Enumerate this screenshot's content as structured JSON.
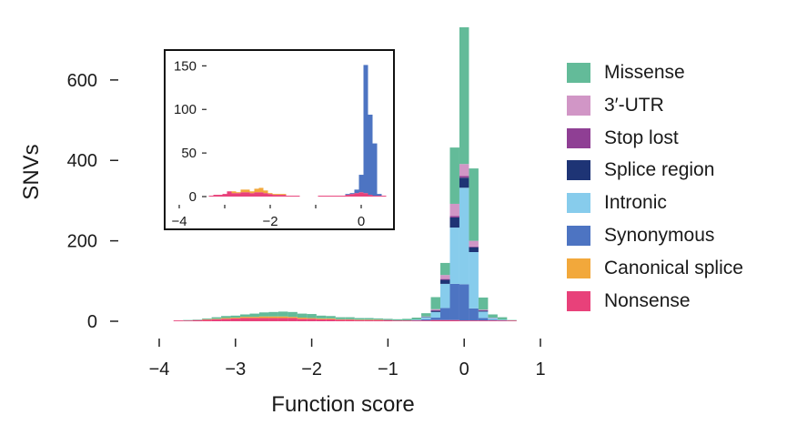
{
  "chart_data": {
    "type": "bar",
    "stacked": true,
    "xlabel": "Function score",
    "ylabel": "SNVs",
    "xlim": [
      -4,
      1
    ],
    "ylim": [
      0,
      740
    ],
    "xticks": [
      "-4",
      "-3",
      "-2",
      "-1",
      "0",
      "1"
    ],
    "yticks": [
      "0",
      "200",
      "400",
      "600"
    ],
    "bin_width": 0.125,
    "legend_position": "right",
    "categories": [
      -3.75,
      -3.625,
      -3.5,
      -3.375,
      -3.25,
      -3.125,
      -3.0,
      -2.875,
      -2.75,
      -2.625,
      -2.5,
      -2.375,
      -2.25,
      -2.125,
      -2.0,
      -1.875,
      -1.75,
      -1.625,
      -1.5,
      -1.375,
      -1.25,
      -1.125,
      -1.0,
      -0.875,
      -0.75,
      -0.625,
      -0.5,
      -0.375,
      -0.25,
      -0.125,
      0.0,
      0.125,
      0.25,
      0.375,
      0.5,
      0.625
    ],
    "series": [
      {
        "name": "Nonsense",
        "color": "#e8417a",
        "values": [
          2,
          2,
          3,
          4,
          5,
          6,
          7,
          8,
          8,
          8,
          8,
          8,
          8,
          6,
          6,
          5,
          5,
          4,
          4,
          3,
          3,
          3,
          3,
          2,
          2,
          2,
          2,
          3,
          3,
          3,
          2,
          2,
          2,
          2,
          2,
          2
        ]
      },
      {
        "name": "Canonical splice",
        "color": "#f2a83b",
        "values": [
          0,
          0,
          0,
          1,
          1,
          2,
          2,
          3,
          3,
          4,
          4,
          4,
          3,
          3,
          2,
          2,
          2,
          1,
          1,
          1,
          1,
          1,
          0,
          0,
          0,
          0,
          0,
          0,
          0,
          0,
          0,
          0,
          0,
          0,
          0,
          0
        ]
      },
      {
        "name": "Synonymous",
        "color": "#4d74c2",
        "values": [
          0,
          0,
          0,
          0,
          0,
          0,
          0,
          0,
          0,
          0,
          0,
          0,
          0,
          0,
          0,
          0,
          0,
          0,
          0,
          0,
          0,
          0,
          0,
          0,
          0,
          1,
          3,
          6,
          30,
          90,
          90,
          30,
          6,
          2,
          1,
          0
        ]
      },
      {
        "name": "Intronic",
        "color": "#87ccec",
        "values": [
          0,
          0,
          0,
          0,
          0,
          0,
          0,
          0,
          0,
          0,
          0,
          0,
          0,
          0,
          0,
          0,
          0,
          0,
          0,
          0,
          0,
          0,
          0,
          0,
          0,
          1,
          5,
          14,
          60,
          140,
          240,
          140,
          16,
          4,
          1,
          0
        ]
      },
      {
        "name": "Splice region",
        "color": "#1e3475",
        "values": [
          0,
          0,
          0,
          0,
          0,
          0,
          0,
          0,
          0,
          0,
          0,
          0,
          0,
          0,
          0,
          0,
          0,
          0,
          0,
          0,
          0,
          0,
          0,
          0,
          0,
          0,
          1,
          3,
          10,
          25,
          25,
          12,
          2,
          0,
          0,
          0
        ]
      },
      {
        "name": "Stop lost",
        "color": "#8f3f94",
        "values": [
          0,
          0,
          0,
          0,
          0,
          0,
          0,
          0,
          0,
          0,
          0,
          0,
          0,
          0,
          0,
          0,
          0,
          0,
          0,
          0,
          0,
          0,
          0,
          0,
          0,
          0,
          0,
          1,
          2,
          4,
          4,
          2,
          1,
          0,
          0,
          0
        ]
      },
      {
        "name": "3′-UTR",
        "color": "#d196c6",
        "values": [
          0,
          0,
          0,
          0,
          0,
          0,
          0,
          0,
          0,
          0,
          0,
          0,
          0,
          0,
          0,
          0,
          0,
          0,
          0,
          0,
          0,
          0,
          0,
          0,
          0,
          0,
          1,
          3,
          10,
          30,
          30,
          14,
          2,
          1,
          0,
          0
        ]
      },
      {
        "name": "Missense",
        "color": "#63bb99",
        "values": [
          0,
          1,
          1,
          2,
          4,
          5,
          5,
          6,
          8,
          10,
          11,
          12,
          12,
          10,
          10,
          7,
          6,
          5,
          5,
          4,
          4,
          3,
          3,
          3,
          4,
          5,
          8,
          30,
          30,
          140,
          340,
          180,
          30,
          8,
          6,
          1
        ]
      }
    ],
    "inset": {
      "xlim": [
        -4.2,
        0.6
      ],
      "ylim": [
        0,
        165
      ],
      "xticks": [
        "-4",
        "-2",
        "0"
      ],
      "yticks": [
        "0",
        "50",
        "100",
        "150"
      ],
      "bin_width": 0.1,
      "categories": [
        -3.3,
        -3.2,
        -3.1,
        -3.0,
        -2.9,
        -2.8,
        -2.7,
        -2.6,
        -2.5,
        -2.4,
        -2.3,
        -2.2,
        -2.1,
        -2.0,
        -1.9,
        -1.8,
        -1.7,
        -1.6,
        -1.5,
        -1.4,
        -0.9,
        -0.8,
        -0.7,
        -0.6,
        -0.5,
        -0.4,
        -0.3,
        -0.2,
        -0.1,
        0.0,
        0.1,
        0.2,
        0.3,
        0.4,
        0.5
      ],
      "series": [
        {
          "name": "Nonsense",
          "color": "#e8417a",
          "values": [
            1,
            2,
            2,
            3,
            6,
            4,
            4,
            5,
            5,
            4,
            5,
            5,
            4,
            3,
            2,
            2,
            2,
            1,
            1,
            1,
            1,
            1,
            1,
            1,
            1,
            1,
            2,
            3,
            4,
            5,
            4,
            2,
            1,
            1,
            1
          ]
        },
        {
          "name": "Canonical splice",
          "color": "#f2a83b",
          "values": [
            0,
            0,
            0,
            0,
            0,
            2,
            1,
            3,
            3,
            2,
            4,
            5,
            3,
            1,
            1,
            1,
            1,
            0,
            0,
            0,
            0,
            0,
            0,
            0,
            0,
            0,
            0,
            0,
            0,
            0,
            0,
            0,
            0,
            0,
            0
          ]
        },
        {
          "name": "Synonymous",
          "color": "#4d74c2",
          "values": [
            0,
            0,
            0,
            0,
            0,
            0,
            0,
            0,
            0,
            0,
            0,
            0,
            0,
            0,
            0,
            0,
            0,
            0,
            0,
            0,
            0,
            0,
            0,
            0,
            0,
            0,
            1,
            1,
            4,
            20,
            147,
            92,
            60,
            2,
            0
          ]
        }
      ]
    }
  },
  "legend": [
    {
      "name": "Missense",
      "color": "#63bb99"
    },
    {
      "name": "3′-UTR",
      "color": "#d196c6"
    },
    {
      "name": "Stop lost",
      "color": "#8f3f94"
    },
    {
      "name": "Splice region",
      "color": "#1e3475"
    },
    {
      "name": "Intronic",
      "color": "#87ccec"
    },
    {
      "name": "Synonymous",
      "color": "#4d74c2"
    },
    {
      "name": "Canonical splice",
      "color": "#f2a83b"
    },
    {
      "name": "Nonsense",
      "color": "#e8417a"
    }
  ]
}
